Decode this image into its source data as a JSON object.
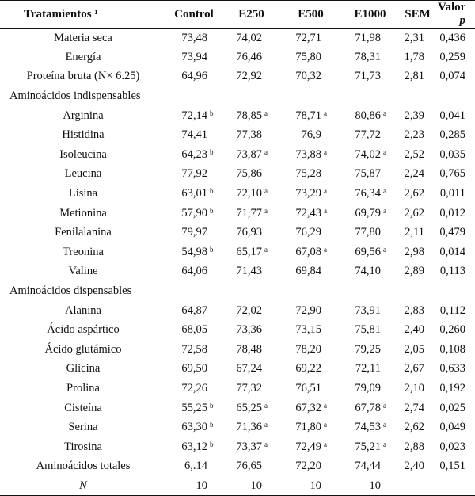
{
  "table": {
    "headers": {
      "treatments": "Tratamientos ¹",
      "control": "Control",
      "e250": "E250",
      "e500": "E500",
      "e1000": "E1000",
      "sem": "SEM",
      "p_label": "Valor ",
      "p_symbol": "p"
    },
    "rows": [
      {
        "name": "Materia seca",
        "v": [
          "73,48",
          "74,02",
          "72,71",
          "71,98"
        ],
        "l": [
          "",
          "",
          "",
          ""
        ],
        "sem": "2,31",
        "p": "0,436"
      },
      {
        "name": "Energía",
        "v": [
          "73,94",
          "76,46",
          "75,80",
          "78,31"
        ],
        "l": [
          "",
          "",
          "",
          ""
        ],
        "sem": "1,78",
        "p": "0,259"
      },
      {
        "name": "Proteína bruta (N× 6.25)",
        "v": [
          "64,96",
          "72,92",
          "70,32",
          "71,73"
        ],
        "l": [
          "",
          "",
          "",
          ""
        ],
        "sem": "2,81",
        "p": "0,074"
      },
      {
        "section": "Aminoácidos indispensables"
      },
      {
        "name": "Arginina",
        "v": [
          "72,14",
          "78,85",
          "78,71",
          "80,86"
        ],
        "l": [
          "b",
          "a",
          "a",
          "a"
        ],
        "sem": "2,39",
        "p": "0,041"
      },
      {
        "name": "Histidina",
        "v": [
          "74,41",
          "77,38",
          "76,9",
          "77,72"
        ],
        "l": [
          "",
          "",
          "",
          ""
        ],
        "sem": "2,23",
        "p": "0,285"
      },
      {
        "name": "Isoleucina",
        "v": [
          "64,23",
          "73,87",
          "73,88",
          "74,02"
        ],
        "l": [
          "b",
          "a",
          "a",
          "a"
        ],
        "sem": "2,52",
        "p": "0,035"
      },
      {
        "name": "Leucina",
        "v": [
          "77,92",
          "75,86",
          "75,28",
          "75,87"
        ],
        "l": [
          "",
          "",
          "",
          ""
        ],
        "sem": "2,24",
        "p": "0,765"
      },
      {
        "name": "Lisina",
        "v": [
          "63,01",
          "72,10",
          "73,29",
          "76,34"
        ],
        "l": [
          "b",
          "a",
          "a",
          "a"
        ],
        "sem": "2,62",
        "p": "0,011"
      },
      {
        "name": "Metionina",
        "v": [
          "57,90",
          "71,77",
          "72,43",
          "69,79"
        ],
        "l": [
          "b",
          "a",
          "a",
          "a"
        ],
        "sem": "2,62",
        "p": "0,012"
      },
      {
        "name": "Fenilalanina",
        "v": [
          "79,97",
          "76,93",
          "76,29",
          "77,80"
        ],
        "l": [
          "",
          "",
          "",
          ""
        ],
        "sem": "2,11",
        "p": "0,479"
      },
      {
        "name": "Treonina",
        "v": [
          "54,98",
          "65,17",
          "67,08",
          "69,56"
        ],
        "l": [
          "b",
          "a",
          "a",
          "a"
        ],
        "sem": "2,98",
        "p": "0,014"
      },
      {
        "name": "Valine",
        "v": [
          "64,06",
          "71,43",
          "69,84",
          "74,10"
        ],
        "l": [
          "",
          "",
          "",
          ""
        ],
        "sem": "2,89",
        "p": "0,113"
      },
      {
        "section": "Aminoácidos dispensables"
      },
      {
        "name": "Alanina",
        "v": [
          "64,87",
          "72,02",
          "72,90",
          "73,91"
        ],
        "l": [
          "",
          "",
          "",
          ""
        ],
        "sem": "2,83",
        "p": "0,112"
      },
      {
        "name": "Ácido aspártico",
        "v": [
          "68,05",
          "73,36",
          "73,15",
          "75,81"
        ],
        "l": [
          "",
          "",
          "",
          ""
        ],
        "sem": "2,40",
        "p": "0,260"
      },
      {
        "name": "Ácido glutámico",
        "v": [
          "72,58",
          "78,48",
          "78,20",
          "79,25"
        ],
        "l": [
          "",
          "",
          "",
          ""
        ],
        "sem": "2,05",
        "p": "0,108"
      },
      {
        "name": "Glicina",
        "v": [
          "69,50",
          "67,24",
          "69,22",
          "72,11"
        ],
        "l": [
          "",
          "",
          "",
          ""
        ],
        "sem": "2,67",
        "p": "0,633"
      },
      {
        "name": "Prolina",
        "v": [
          "72,26",
          "77,32",
          "76,51",
          "79,09"
        ],
        "l": [
          "",
          "",
          "",
          ""
        ],
        "sem": "2,10",
        "p": "0,192"
      },
      {
        "name": "Cisteína",
        "v": [
          "55,25",
          "65,25",
          "67,32",
          "67,78"
        ],
        "l": [
          "b",
          "a",
          "a",
          "a"
        ],
        "sem": "2,74",
        "p": "0,025"
      },
      {
        "name": "Serina",
        "v": [
          "63,30",
          "71,36",
          "71,80",
          "74,53"
        ],
        "l": [
          "b",
          "a",
          "a",
          "a"
        ],
        "sem": "2,62",
        "p": "0,049"
      },
      {
        "name": "Tirosina",
        "v": [
          "63,12",
          "73,37",
          "72,49",
          "75,21"
        ],
        "l": [
          "b",
          "a",
          "a",
          "a"
        ],
        "sem": "2,88",
        "p": "0,023"
      },
      {
        "name": "Aminoácidos totales",
        "v": [
          "6,.14",
          "76,65",
          "72,20",
          "74,44"
        ],
        "l": [
          "",
          "",
          "",
          ""
        ],
        "sem": "2,40",
        "p": "0,151"
      },
      {
        "name": "N",
        "italic": true,
        "v": [
          "10",
          "10",
          "10",
          "10"
        ],
        "l": [
          "",
          "",
          "",
          ""
        ],
        "sem": "",
        "p": ""
      }
    ]
  }
}
